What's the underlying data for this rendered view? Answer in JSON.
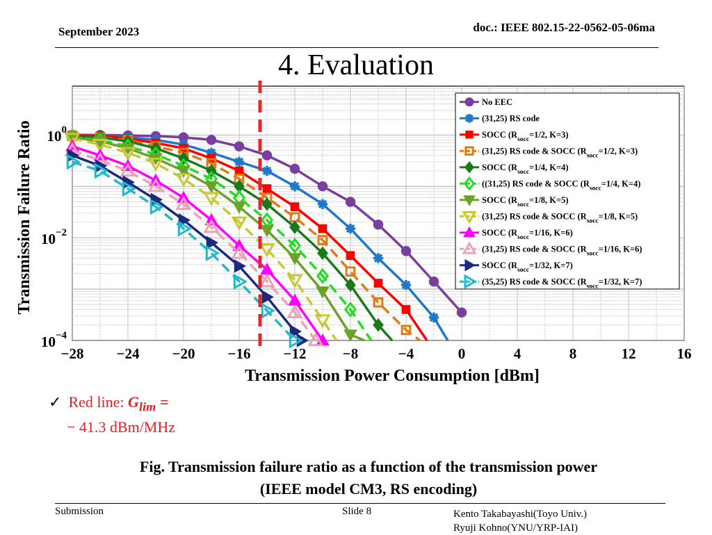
{
  "header": {
    "date": "September 2023",
    "doc": "doc.: IEEE 802.15-22-0562-05-06ma"
  },
  "title": "4. Evaluation",
  "bullet": {
    "line1_prefix": "Red line: ",
    "symbol": "G",
    "subscript": "lim",
    "equals": " =",
    "line2": "− 41.3 dBm/MHz"
  },
  "caption": {
    "line1": "Fig. Transmission failure ratio as a function of the transmission power",
    "line2": "(IEEE model CM3,  RS encoding)"
  },
  "footer": {
    "left": "Submission",
    "middle": "Slide 8",
    "right1": "Kento Takabayashi(Toyo Univ.)",
    "right2": "Ryuji Kohno(YNU/YRP-IAI)"
  },
  "chart_data": {
    "type": "line",
    "xlabel": "Transmission Power Consumption [dBm]",
    "ylabel": "Transmission Failure Ratio",
    "xlim": [
      -28,
      16
    ],
    "ylim": [
      0.0001,
      10
    ],
    "yscale": "log",
    "xticks": [
      "−28",
      "−24",
      "−20",
      "−16",
      "−12",
      "−8",
      "−4",
      "0",
      "4",
      "8",
      "12",
      "16"
    ],
    "yticks": [
      {
        "base": "10",
        "exp": "0",
        "value": 1
      },
      {
        "base": "10",
        "exp": "−2",
        "value": 0.01
      },
      {
        "base": "10",
        "exp": "−4",
        "value": 0.0001
      }
    ],
    "grid": true,
    "legend_position": "top-right",
    "vline": {
      "x": -14.5,
      "color": "#e8262a",
      "style": "dashed"
    },
    "series": [
      {
        "name": "No EEC",
        "color": "#7a3f9e",
        "marker": "circle",
        "fill": true,
        "dash": false,
        "x": [
          -28,
          -26,
          -24,
          -22,
          -20,
          -18,
          -16,
          -14,
          -12,
          -10,
          -8,
          -6,
          -4,
          -2,
          0
        ],
        "y": [
          1,
          1,
          0.98,
          0.95,
          0.9,
          0.8,
          0.6,
          0.4,
          0.22,
          0.1,
          0.05,
          0.018,
          0.0055,
          0.0014,
          0.00035
        ]
      },
      {
        "name": "(31,25) RS code",
        "color": "#1f77c8",
        "marker": "star",
        "fill": true,
        "dash": false,
        "x": [
          -28,
          -26,
          -24,
          -22,
          -20,
          -18,
          -16,
          -14,
          -12,
          -10,
          -8,
          -6,
          -4,
          -2,
          -1
        ],
        "y": [
          1,
          0.95,
          0.9,
          0.8,
          0.65,
          0.45,
          0.3,
          0.2,
          0.1,
          0.045,
          0.015,
          0.004,
          0.0012,
          0.00028,
          0.0001
        ]
      },
      {
        "name": "SOCC (R_socc=1/2, K=3)",
        "color": "#ff0000",
        "marker": "square",
        "fill": true,
        "dash": false,
        "x": [
          -28,
          -26,
          -24,
          -22,
          -20,
          -18,
          -16,
          -14,
          -12,
          -10,
          -8,
          -6,
          -4,
          -2.5
        ],
        "y": [
          1,
          0.95,
          0.85,
          0.7,
          0.55,
          0.35,
          0.2,
          0.09,
          0.04,
          0.015,
          0.0045,
          0.0013,
          0.0004,
          0.0001
        ]
      },
      {
        "name": "(31,25) RS code & SOCC (R_socc=1/2, K=3)",
        "color": "#e07b10",
        "marker": "square",
        "fill": false,
        "dash": true,
        "x": [
          -28,
          -26,
          -24,
          -22,
          -20,
          -18,
          -16,
          -14,
          -12,
          -10,
          -8,
          -6,
          -4,
          -3
        ],
        "y": [
          0.95,
          0.9,
          0.8,
          0.6,
          0.45,
          0.28,
          0.14,
          0.06,
          0.025,
          0.009,
          0.0022,
          0.00055,
          0.00016,
          0.0001
        ]
      },
      {
        "name": "SOCC (R_socc=1/4, K=4)",
        "color": "#1a7a1a",
        "marker": "diamond",
        "fill": true,
        "dash": false,
        "x": [
          -28,
          -26,
          -24,
          -22,
          -20,
          -18,
          -16,
          -14,
          -12,
          -10,
          -8,
          -6,
          -5
        ],
        "y": [
          0.95,
          0.9,
          0.75,
          0.55,
          0.35,
          0.2,
          0.1,
          0.045,
          0.016,
          0.005,
          0.0012,
          0.0002,
          0.0001
        ]
      },
      {
        "name": "((31,25) RS code & SOCC (R_socc=1/4, K=4)",
        "color": "#22dd22",
        "marker": "diamond",
        "fill": false,
        "dash": true,
        "x": [
          -28,
          -26,
          -24,
          -22,
          -20,
          -18,
          -16,
          -14,
          -12,
          -10,
          -8,
          -6.5
        ],
        "y": [
          0.9,
          0.8,
          0.6,
          0.42,
          0.25,
          0.14,
          0.06,
          0.022,
          0.007,
          0.0018,
          0.0004,
          0.0001
        ]
      },
      {
        "name": "SOCC (R_socc=1/8, K=5)",
        "color": "#6aa22a",
        "marker": "triangle-down",
        "fill": true,
        "dash": false,
        "x": [
          -28,
          -26,
          -24,
          -22,
          -20,
          -18,
          -16,
          -14,
          -12,
          -10,
          -8,
          -7
        ],
        "y": [
          0.9,
          0.75,
          0.55,
          0.35,
          0.2,
          0.1,
          0.04,
          0.014,
          0.004,
          0.0009,
          0.00013,
          0.0001
        ]
      },
      {
        "name": "(31,25) RS code & SOCC (R_socc=1/8, K=5)",
        "color": "#c8c832",
        "marker": "triangle-down",
        "fill": false,
        "dash": true,
        "x": [
          -28,
          -26,
          -24,
          -22,
          -20,
          -18,
          -16,
          -14,
          -12,
          -10,
          -9
        ],
        "y": [
          0.85,
          0.65,
          0.45,
          0.28,
          0.14,
          0.06,
          0.02,
          0.006,
          0.0015,
          0.00025,
          0.0001
        ]
      },
      {
        "name": "SOCC (R_socc=1/16, K=6)",
        "color": "#ff00ff",
        "marker": "triangle-up",
        "fill": true,
        "dash": false,
        "x": [
          -28,
          -26,
          -24,
          -22,
          -20,
          -18,
          -16,
          -14,
          -12,
          -10
        ],
        "y": [
          0.6,
          0.4,
          0.25,
          0.13,
          0.06,
          0.022,
          0.007,
          0.0024,
          0.0006,
          0.0001
        ]
      },
      {
        "name": "(31,25) RS code & SOCC (R_socc=1/16, K=6)",
        "color": "#f0a0b8",
        "marker": "triangle-up",
        "fill": false,
        "dash": true,
        "x": [
          -28,
          -26,
          -24,
          -22,
          -20,
          -18,
          -16,
          -14,
          -12,
          -10.5
        ],
        "y": [
          0.5,
          0.32,
          0.2,
          0.1,
          0.045,
          0.016,
          0.005,
          0.0014,
          0.00035,
          0.0001
        ]
      },
      {
        "name": "SOCC (R_socc=1/32, K=7)",
        "color": "#1a2a80",
        "marker": "triangle-right",
        "fill": true,
        "dash": false,
        "x": [
          -28,
          -26,
          -24,
          -22,
          -20,
          -18,
          -16,
          -14,
          -12,
          -11.5
        ],
        "y": [
          0.4,
          0.25,
          0.12,
          0.055,
          0.022,
          0.008,
          0.0028,
          0.0007,
          0.00015,
          0.0001
        ]
      },
      {
        "name": "(35,25) RS code & SOCC (R_socc=1/32, K=7)",
        "color": "#22b8cc",
        "marker": "triangle-right",
        "fill": false,
        "dash": true,
        "x": [
          -28,
          -26,
          -24,
          -22,
          -20,
          -18,
          -16,
          -14,
          -12
        ],
        "y": [
          0.3,
          0.2,
          0.09,
          0.04,
          0.015,
          0.005,
          0.0014,
          0.00038,
          0.0001
        ]
      }
    ]
  }
}
